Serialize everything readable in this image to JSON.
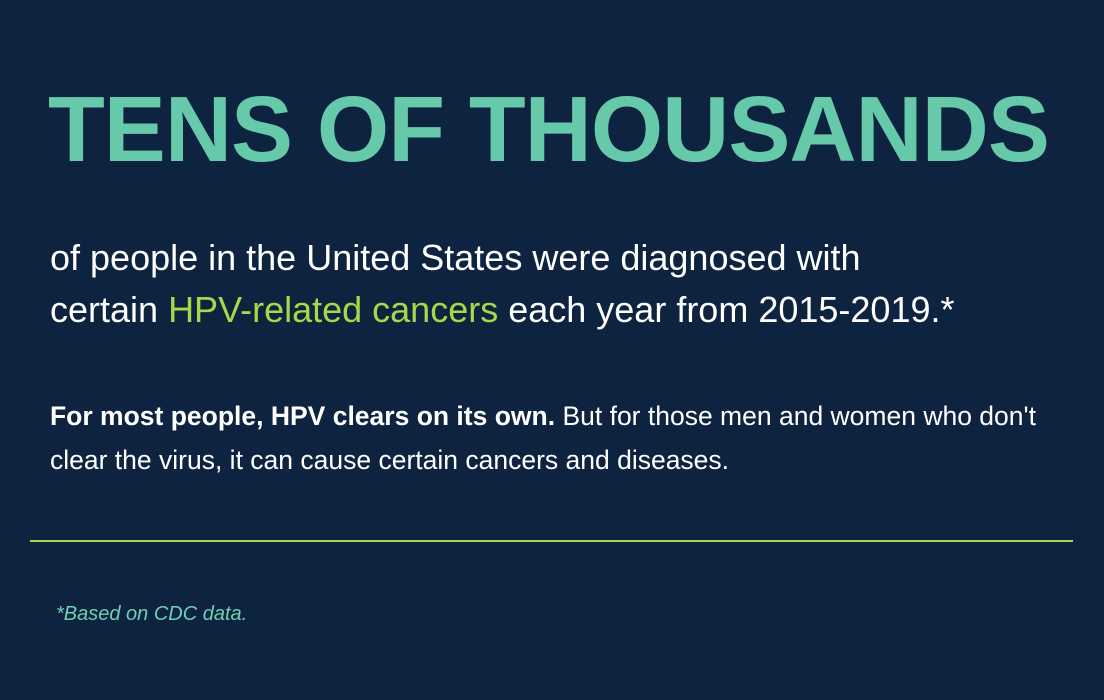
{
  "headline": "TENS OF THOUSANDS",
  "lead": {
    "line1": "of people in the United States were diagnosed with",
    "before": "certain ",
    "highlight": "HPV-related cancers",
    "after": " each year from 2015-2019.*"
  },
  "body": {
    "bold": "For most people, HPV clears on its own.",
    "rest": " But for those men and women who don't clear the virus, it can cause certain cancers and diseases."
  },
  "footnote": "*Based on CDC data."
}
